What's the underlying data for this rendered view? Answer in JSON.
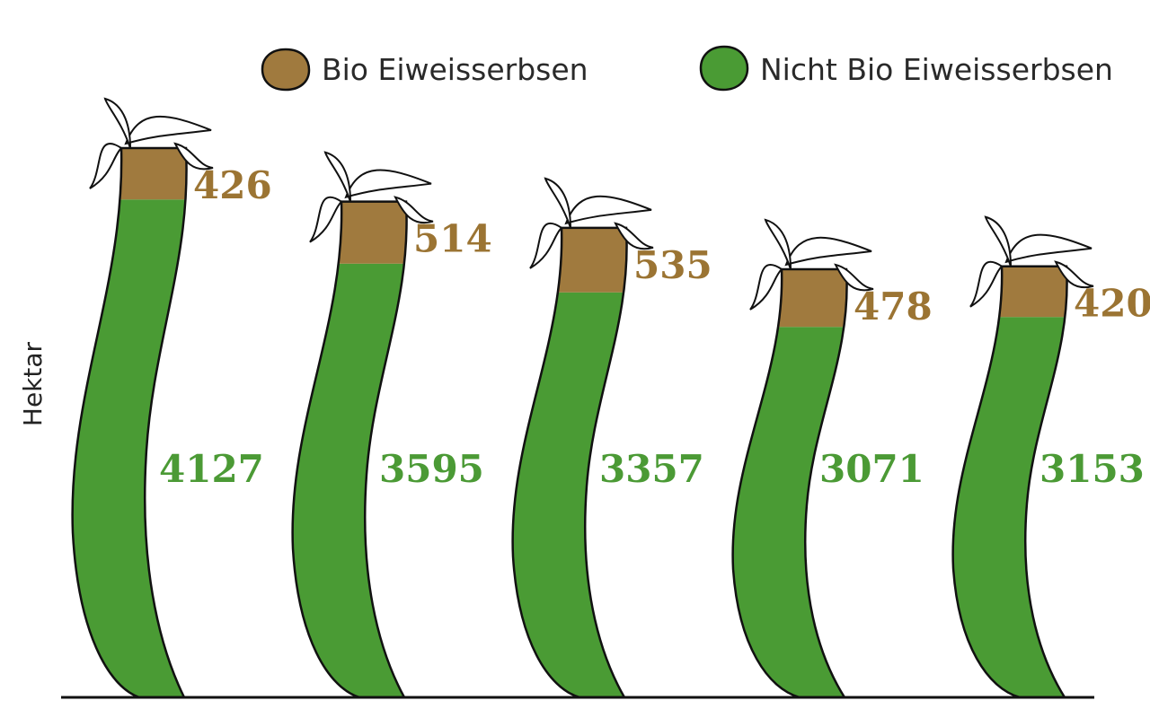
{
  "colors": {
    "bio": "#A07A3E",
    "nicht_bio": "#4A9B34",
    "bio_text": "#9B7433",
    "nicht_bio_text": "#4B9A35",
    "outline": "#111111"
  },
  "chart_data": {
    "type": "bar",
    "stacked": true,
    "ylabel": "Hektar",
    "legend_position": "top",
    "categories": [
      "",
      "",
      "",
      "",
      ""
    ],
    "series": [
      {
        "name": "Nicht Bio Eiweisserbsen",
        "values": [
          4127,
          3595,
          3357,
          3071,
          3153
        ]
      },
      {
        "name": "Bio Eiweisserbsen",
        "values": [
          426,
          514,
          535,
          478,
          420
        ]
      }
    ],
    "value_labels_bio": [
      "426",
      "514",
      "535",
      "478",
      "420"
    ],
    "value_labels_nicht_bio": [
      "4127",
      "3595",
      "3357",
      "3071",
      "3153"
    ],
    "legend": {
      "bio_label": "Bio Eiweisserbsen",
      "nicht_bio_label": "Nicht Bio Eiweisserbsen"
    },
    "ylim": [
      0,
      4553
    ],
    "grid": false
  }
}
